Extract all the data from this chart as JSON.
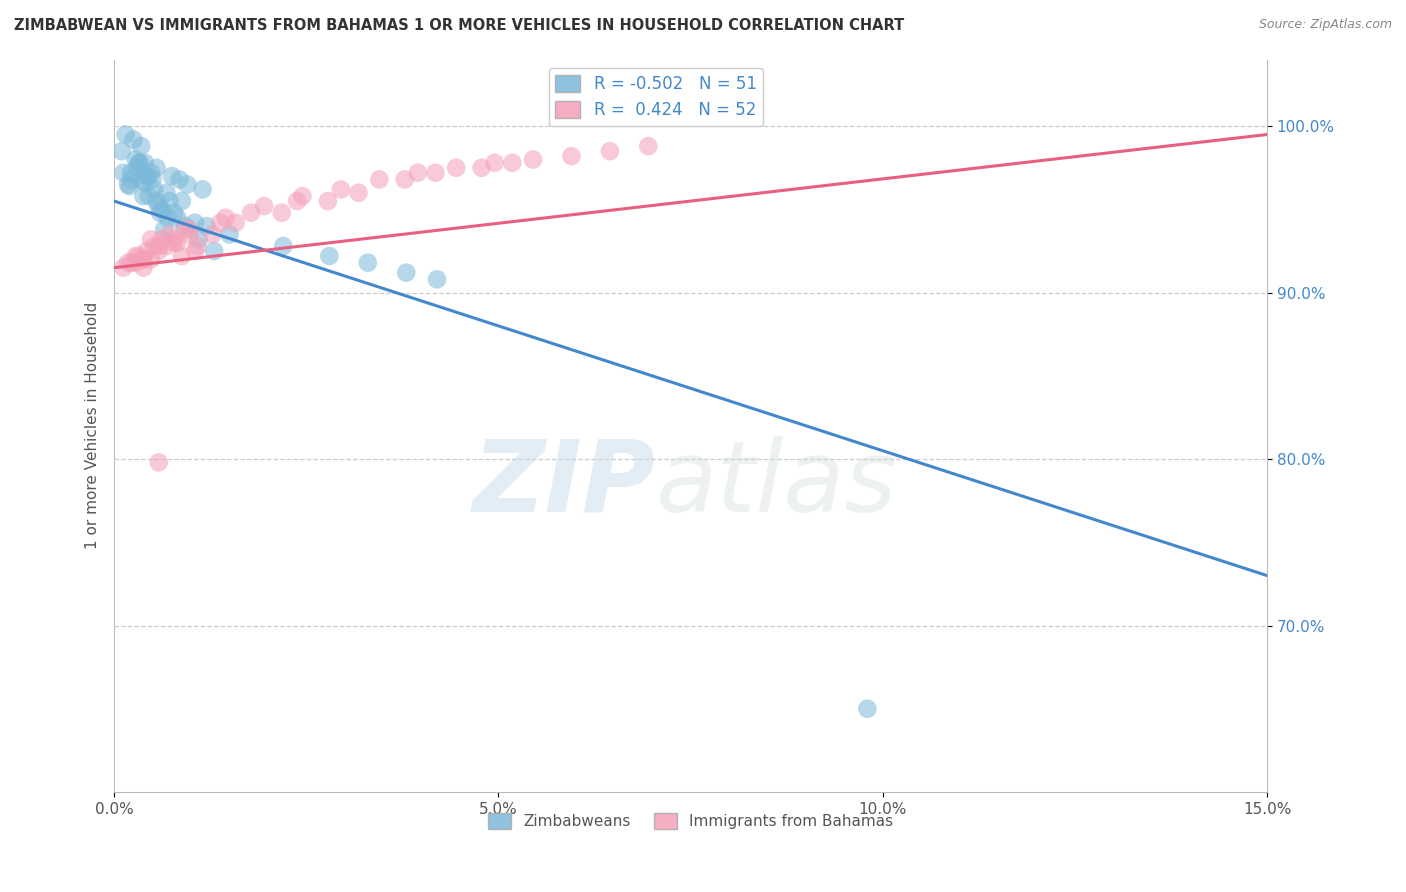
{
  "title": "ZIMBABWEAN VS IMMIGRANTS FROM BAHAMAS 1 OR MORE VEHICLES IN HOUSEHOLD CORRELATION CHART",
  "source": "Source: ZipAtlas.com",
  "ylabel": "1 or more Vehicles in Household",
  "xlim": [
    0.0,
    15.0
  ],
  "ylim": [
    60.0,
    104.0
  ],
  "yticks": [
    70.0,
    80.0,
    90.0,
    100.0
  ],
  "ytick_labels": [
    "70.0%",
    "80.0%",
    "90.0%",
    "100.0%"
  ],
  "xticks": [
    0.0,
    5.0,
    10.0,
    15.0
  ],
  "xtick_labels": [
    "0.0%",
    "5.0%",
    "10.0%",
    "15.0%"
  ],
  "blue_color": "#7ab8d9",
  "pink_color": "#f4a0b8",
  "blue_line_color": "#4488cc",
  "pink_line_color": "#e86080",
  "R_blue": "-0.502",
  "N_blue": 51,
  "R_pink": "0.424",
  "N_pink": 52,
  "legend_labels": [
    "Zimbabweans",
    "Immigrants from Bahamas"
  ],
  "blue_line_x0": 0.0,
  "blue_line_y0": 95.5,
  "blue_line_x1": 15.0,
  "blue_line_y1": 73.0,
  "pink_line_x0": 0.0,
  "pink_line_y0": 91.5,
  "pink_line_x1": 15.0,
  "pink_line_y1": 99.5,
  "blue_scatter_x": [
    0.15,
    0.25,
    0.35,
    0.1,
    0.4,
    0.55,
    0.75,
    0.85,
    0.95,
    1.15,
    0.28,
    0.48,
    0.68,
    0.38,
    0.22,
    0.58,
    0.32,
    0.78,
    0.52,
    0.42,
    0.3,
    0.18,
    0.12,
    0.62,
    0.72,
    0.5,
    0.44,
    0.33,
    0.2,
    0.82,
    0.88,
    1.05,
    1.2,
    0.6,
    0.45,
    0.35,
    0.55,
    0.22,
    0.7,
    0.4,
    1.5,
    2.2,
    2.8,
    3.3,
    3.8,
    4.2,
    0.92,
    1.1,
    1.3,
    0.65,
    9.8
  ],
  "blue_scatter_y": [
    99.5,
    99.2,
    98.8,
    98.5,
    97.8,
    97.5,
    97.0,
    96.8,
    96.5,
    96.2,
    98.0,
    97.2,
    96.0,
    95.8,
    96.8,
    95.2,
    97.8,
    94.8,
    96.2,
    97.0,
    97.5,
    96.5,
    97.2,
    95.0,
    95.5,
    96.8,
    97.0,
    97.8,
    96.4,
    94.5,
    95.5,
    94.2,
    94.0,
    94.8,
    95.8,
    96.8,
    95.5,
    97.2,
    94.5,
    96.6,
    93.5,
    92.8,
    92.2,
    91.8,
    91.2,
    90.8,
    94.0,
    93.2,
    92.5,
    93.8,
    65.0
  ],
  "pink_scatter_x": [
    0.12,
    0.22,
    0.32,
    0.42,
    0.52,
    0.62,
    0.72,
    0.82,
    0.92,
    1.05,
    0.38,
    0.58,
    0.78,
    0.98,
    1.45,
    1.95,
    2.45,
    2.95,
    3.45,
    3.95,
    4.45,
    4.95,
    5.45,
    5.95,
    6.45,
    6.95,
    0.28,
    0.48,
    0.68,
    0.88,
    1.08,
    1.28,
    1.58,
    2.18,
    2.78,
    3.18,
    3.78,
    4.18,
    4.78,
    5.18,
    0.18,
    0.38,
    0.58,
    0.78,
    0.98,
    1.38,
    1.78,
    2.38,
    0.48,
    0.28,
    0.38,
    0.58
  ],
  "pink_scatter_y": [
    91.5,
    91.8,
    92.2,
    92.5,
    92.8,
    93.2,
    93.5,
    93.0,
    93.8,
    92.5,
    92.0,
    92.8,
    93.2,
    93.8,
    94.5,
    95.2,
    95.8,
    96.2,
    96.8,
    97.2,
    97.5,
    97.8,
    98.0,
    98.2,
    98.5,
    98.8,
    92.2,
    92.0,
    92.8,
    92.2,
    92.8,
    93.5,
    94.2,
    94.8,
    95.5,
    96.0,
    96.8,
    97.2,
    97.5,
    97.8,
    91.8,
    92.0,
    92.5,
    93.0,
    93.5,
    94.2,
    94.8,
    95.5,
    93.2,
    91.8,
    91.5,
    79.8
  ]
}
